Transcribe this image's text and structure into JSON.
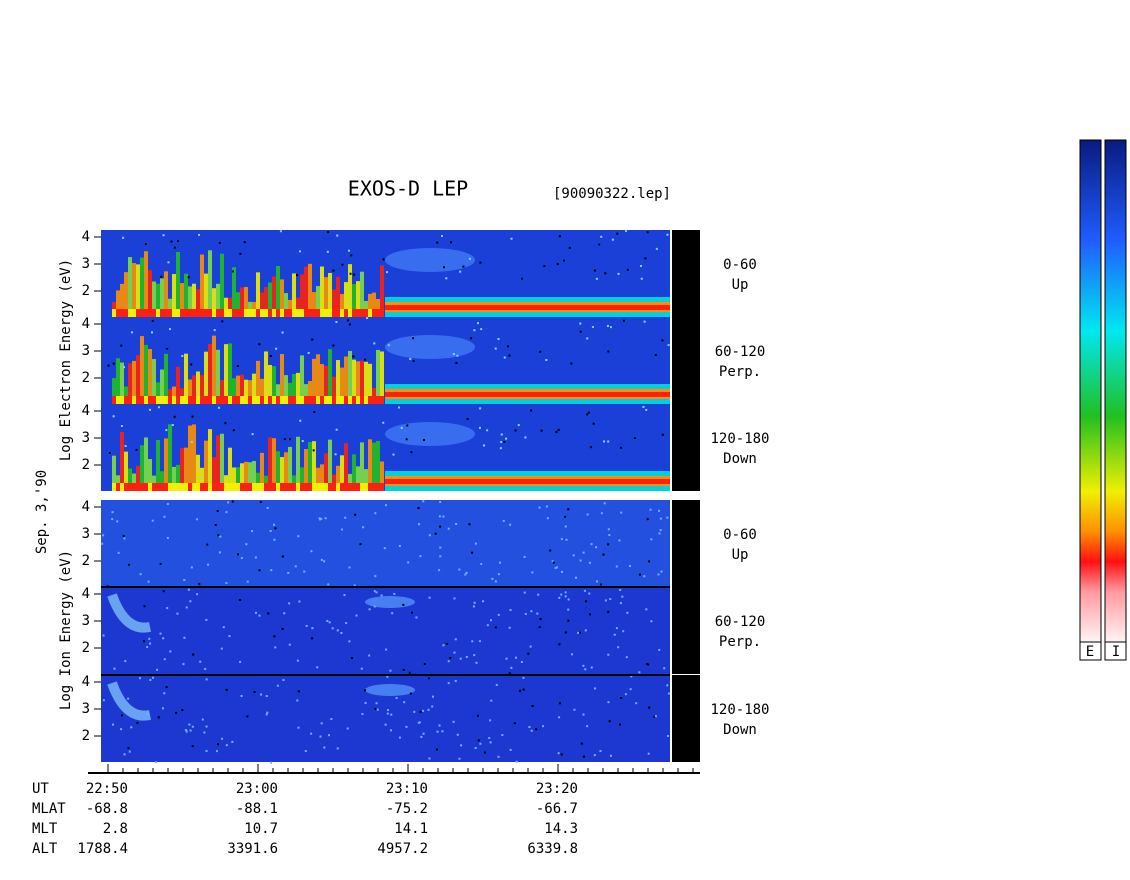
{
  "title": "EXOS-D LEP",
  "file": "[90090322.lep]",
  "electron_axis_label": "Log Electron Energy (eV)",
  "ion_axis_label": "Log Ion Energy (eV)",
  "date": "Sep. 3,'90",
  "energy_ticks": [
    "4",
    "3",
    "2"
  ],
  "pitch_panels": [
    {
      "range": "0-60",
      "direction": "Up"
    },
    {
      "range": "60-120",
      "direction": "Perp."
    },
    {
      "range": "120-180",
      "direction": "Down"
    }
  ],
  "colorbar_labels": [
    "E",
    "I"
  ],
  "orbit_table": {
    "row_labels": [
      "UT",
      "MLAT",
      "MLT",
      "ALT"
    ],
    "columns": [
      [
        "22:50",
        "-68.8",
        "2.8",
        "1788.4"
      ],
      [
        "23:00",
        "-88.1",
        "10.7",
        "3391.6"
      ],
      [
        "23:10",
        "-75.2",
        "14.1",
        "4957.2"
      ],
      [
        "23:20",
        "-66.7",
        "14.3",
        "6339.8"
      ]
    ]
  }
}
